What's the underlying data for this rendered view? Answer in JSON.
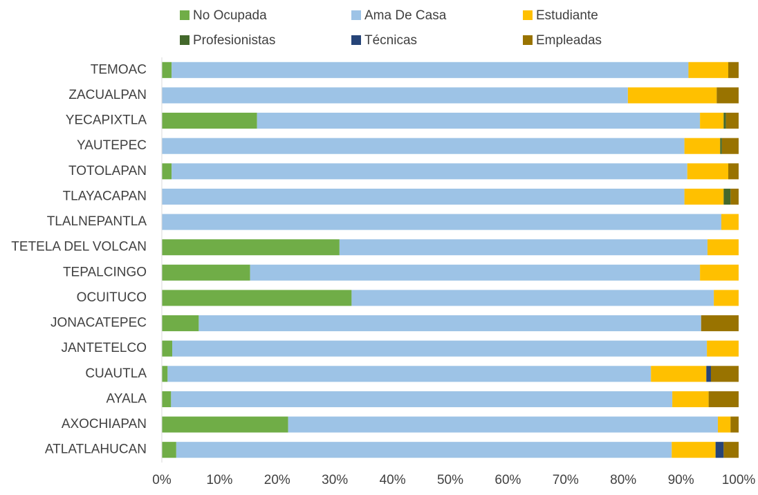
{
  "chart_data": {
    "type": "stacked_barh",
    "categories": [
      "TEMOAC",
      "ZACUALPAN",
      "YECAPIXTLA",
      "YAUTEPEC",
      "TOTOLAPAN",
      "TLAYACAPAN",
      "TLALNEPANTLA",
      "TETELA DEL VOLCAN",
      "TEPALCINGO",
      "OCUITUCO",
      "JONACATEPEC",
      "JANTETELCO",
      "CUAUTLA",
      "AYALA",
      "AXOCHIAPAN",
      "ATLATLAHUCAN"
    ],
    "series": [
      {
        "name": "No Ocupada",
        "color": "#70ad47",
        "values": [
          1.7,
          0,
          16.5,
          0,
          1.7,
          0,
          0,
          30.8,
          15.3,
          32.9,
          6.4,
          1.8,
          1.0,
          1.6,
          21.9,
          2.5
        ]
      },
      {
        "name": "Ama De Casa",
        "color": "#9dc3e6",
        "values": [
          89.6,
          80.8,
          76.8,
          90.6,
          89.4,
          90.6,
          97.0,
          63.8,
          78.0,
          62.8,
          87.1,
          92.7,
          83.8,
          86.9,
          74.5,
          85.9
        ]
      },
      {
        "name": "Estudiante",
        "color": "#ffc000",
        "values": [
          6.9,
          15.4,
          4.1,
          6.2,
          7.1,
          6.8,
          3.0,
          5.4,
          6.7,
          4.3,
          0,
          5.5,
          9.6,
          6.3,
          2.2,
          7.6
        ]
      },
      {
        "name": "Profesionistas",
        "color": "#43682b",
        "values": [
          0,
          0,
          0.4,
          0.3,
          0,
          1.2,
          0,
          0,
          0,
          0,
          0,
          0,
          0,
          0,
          0,
          0
        ]
      },
      {
        "name": "Técnicas",
        "color": "#264478",
        "values": [
          0,
          0,
          0,
          0,
          0,
          0,
          0,
          0,
          0,
          0,
          0,
          0,
          0.8,
          0,
          0,
          1.4
        ]
      },
      {
        "name": "Empleadas",
        "color": "#997300",
        "values": [
          1.8,
          3.8,
          2.2,
          2.9,
          1.8,
          1.4,
          0,
          0,
          0,
          0,
          6.5,
          0,
          4.8,
          5.2,
          1.4,
          2.6
        ]
      }
    ],
    "xlim": [
      0,
      100
    ],
    "xticks": [
      {
        "value": 0,
        "label": "0%"
      },
      {
        "value": 10,
        "label": "10%"
      },
      {
        "value": 20,
        "label": "20%"
      },
      {
        "value": 30,
        "label": "30%"
      },
      {
        "value": 40,
        "label": "40%"
      },
      {
        "value": 50,
        "label": "50%"
      },
      {
        "value": 60,
        "label": "60%"
      },
      {
        "value": 70,
        "label": "70%"
      },
      {
        "value": 80,
        "label": "80%"
      },
      {
        "value": 90,
        "label": "90%"
      },
      {
        "value": 100,
        "label": "100%"
      }
    ]
  }
}
